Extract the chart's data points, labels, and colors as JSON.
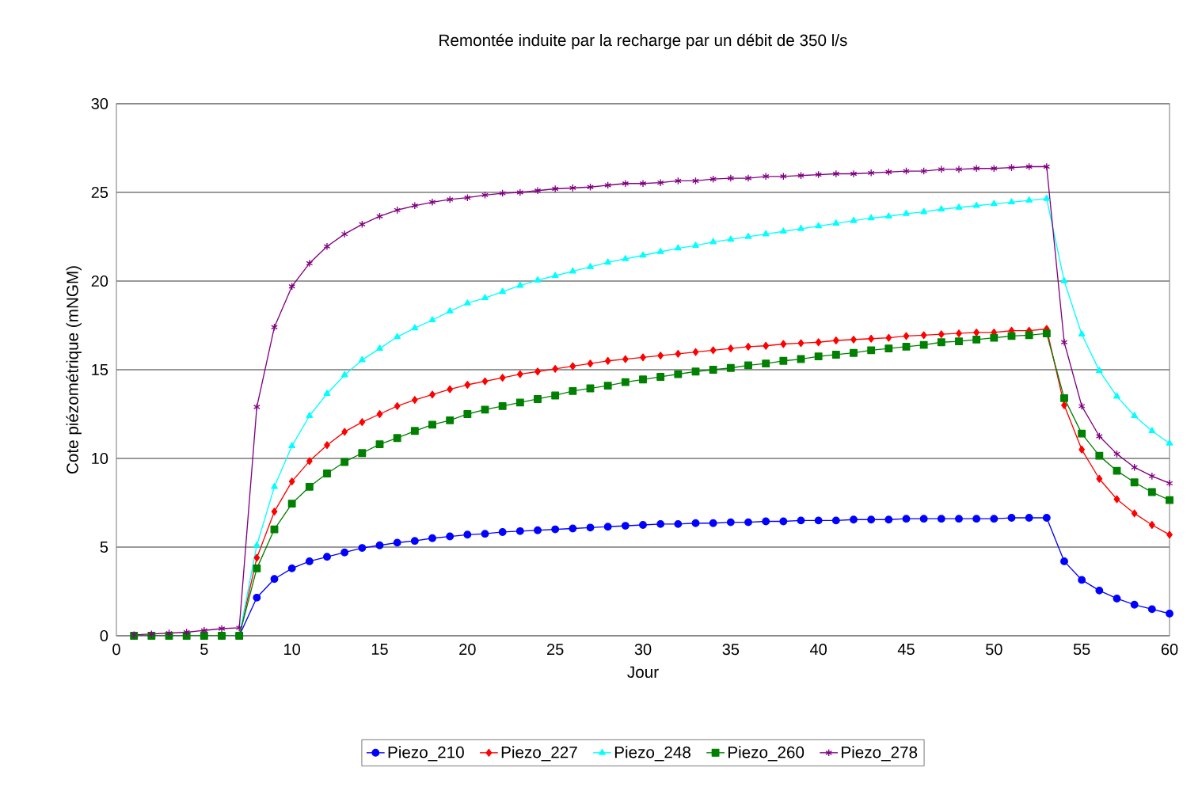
{
  "chart_data": {
    "type": "line",
    "title": "Remontée induite par la recharge par un débit de 350 l/s",
    "xlabel": "Jour",
    "ylabel": "Cote piézométrique (mNGM)",
    "x": [
      1,
      2,
      3,
      4,
      5,
      6,
      7,
      8,
      9,
      10,
      11,
      12,
      13,
      14,
      15,
      16,
      17,
      18,
      19,
      20,
      21,
      22,
      23,
      24,
      25,
      26,
      27,
      28,
      29,
      30,
      31,
      32,
      33,
      34,
      35,
      36,
      37,
      38,
      39,
      40,
      41,
      42,
      43,
      44,
      45,
      46,
      47,
      48,
      49,
      50,
      51,
      52,
      53,
      54,
      55,
      56,
      57,
      58,
      59,
      60
    ],
    "series": [
      {
        "name": "Piezo_210",
        "color": "#0000ff",
        "marker": "circle",
        "values": [
          null,
          null,
          null,
          null,
          null,
          0,
          0,
          2.15,
          3.2,
          3.8,
          4.2,
          4.45,
          4.7,
          4.95,
          5.1,
          5.25,
          5.35,
          5.5,
          5.6,
          5.7,
          5.75,
          5.85,
          5.9,
          5.95,
          6.0,
          6.05,
          6.1,
          6.15,
          6.2,
          6.25,
          6.3,
          6.3,
          6.35,
          6.35,
          6.4,
          6.4,
          6.45,
          6.45,
          6.5,
          6.5,
          6.5,
          6.55,
          6.55,
          6.55,
          6.6,
          6.6,
          6.6,
          6.6,
          6.6,
          6.6,
          6.65,
          6.65,
          6.65,
          4.2,
          3.15,
          2.55,
          2.1,
          1.75,
          1.5,
          1.25
        ]
      },
      {
        "name": "Piezo_227",
        "color": "#ff0000",
        "marker": "diamond",
        "values": [
          null,
          null,
          null,
          null,
          null,
          0,
          0,
          4.4,
          7.0,
          8.7,
          9.85,
          10.75,
          11.5,
          12.05,
          12.5,
          12.95,
          13.3,
          13.6,
          13.9,
          14.15,
          14.35,
          14.55,
          14.75,
          14.9,
          15.05,
          15.2,
          15.35,
          15.5,
          15.6,
          15.7,
          15.8,
          15.9,
          16.0,
          16.1,
          16.2,
          16.3,
          16.35,
          16.45,
          16.5,
          16.55,
          16.65,
          16.7,
          16.75,
          16.8,
          16.9,
          16.95,
          17.0,
          17.05,
          17.1,
          17.1,
          17.2,
          17.2,
          17.3,
          13.0,
          10.5,
          8.85,
          7.7,
          6.9,
          6.25,
          5.7
        ]
      },
      {
        "name": "Piezo_248",
        "color": "#00ffff",
        "marker": "triangle",
        "values": [
          null,
          null,
          null,
          null,
          null,
          0,
          0,
          5.1,
          8.4,
          10.7,
          12.4,
          13.65,
          14.7,
          15.55,
          16.2,
          16.85,
          17.35,
          17.8,
          18.3,
          18.75,
          19.05,
          19.4,
          19.75,
          20.05,
          20.3,
          20.55,
          20.8,
          21.05,
          21.25,
          21.45,
          21.65,
          21.85,
          22.0,
          22.2,
          22.35,
          22.5,
          22.65,
          22.8,
          22.95,
          23.1,
          23.25,
          23.4,
          23.55,
          23.65,
          23.8,
          23.9,
          24.05,
          24.15,
          24.25,
          24.35,
          24.45,
          24.55,
          24.65,
          20.0,
          17.0,
          14.95,
          13.5,
          12.4,
          11.55,
          10.85
        ]
      },
      {
        "name": "Piezo_260",
        "color": "#008000",
        "marker": "square",
        "values": [
          0,
          0,
          0,
          0,
          0,
          0,
          0,
          3.8,
          6.0,
          7.45,
          8.4,
          9.15,
          9.8,
          10.3,
          10.8,
          11.15,
          11.55,
          11.9,
          12.15,
          12.5,
          12.75,
          12.95,
          13.15,
          13.35,
          13.55,
          13.8,
          13.95,
          14.1,
          14.3,
          14.45,
          14.6,
          14.75,
          14.9,
          15.0,
          15.1,
          15.25,
          15.35,
          15.5,
          15.6,
          15.75,
          15.85,
          15.95,
          16.1,
          16.2,
          16.3,
          16.4,
          16.55,
          16.6,
          16.7,
          16.8,
          16.9,
          16.95,
          17.05,
          13.4,
          11.4,
          10.15,
          9.3,
          8.65,
          8.1,
          7.65
        ]
      },
      {
        "name": "Piezo_278",
        "color": "#800080",
        "marker": "cross",
        "values": [
          0.05,
          0.1,
          0.15,
          0.2,
          0.3,
          0.4,
          0.45,
          12.9,
          17.4,
          19.7,
          21.0,
          21.95,
          22.65,
          23.2,
          23.65,
          24.0,
          24.25,
          24.45,
          24.6,
          24.7,
          24.85,
          24.95,
          25.0,
          25.1,
          25.2,
          25.25,
          25.3,
          25.4,
          25.5,
          25.5,
          25.55,
          25.65,
          25.65,
          25.75,
          25.8,
          25.8,
          25.9,
          25.9,
          25.95,
          26.0,
          26.05,
          26.05,
          26.1,
          26.15,
          26.2,
          26.2,
          26.3,
          26.3,
          26.35,
          26.35,
          26.4,
          26.45,
          26.45,
          16.55,
          12.95,
          11.25,
          10.25,
          9.5,
          9.0,
          8.6
        ]
      }
    ],
    "xlim": [
      0,
      60
    ],
    "xticks": [
      0,
      5,
      10,
      15,
      20,
      25,
      30,
      35,
      40,
      45,
      50,
      55,
      60
    ],
    "ylim": [
      0,
      30
    ],
    "yticks": [
      0,
      5,
      10,
      15,
      20,
      25,
      30
    ],
    "grid": "y",
    "legend": "bottom",
    "line_style": "solid"
  }
}
